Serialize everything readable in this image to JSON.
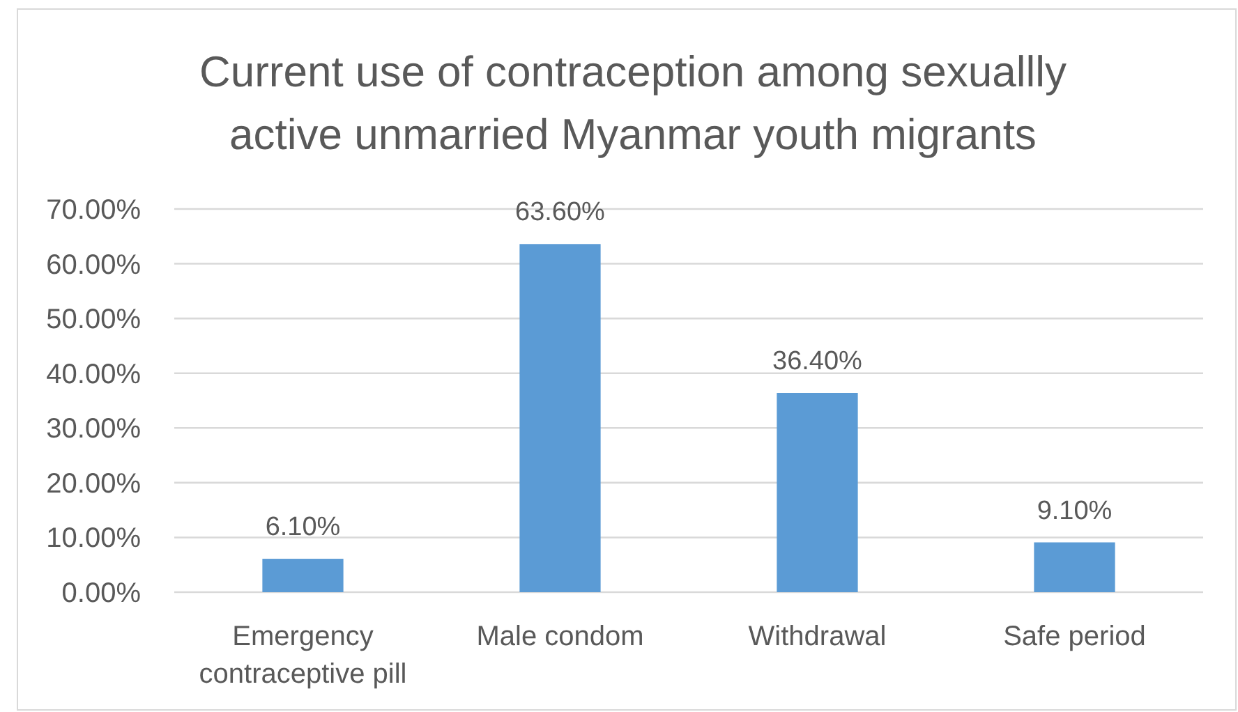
{
  "chart_data": {
    "type": "bar",
    "title": "Current use of contraception among sexuallly active unmarried Myanmar youth migrants",
    "categories": [
      "Emergency contraceptive pill",
      "Male condom",
      "Withdrawal",
      "Safe period"
    ],
    "values": [
      6.1,
      63.6,
      36.4,
      9.1
    ],
    "value_labels": [
      "6.10%",
      "63.60%",
      "36.40%",
      "9.10%"
    ],
    "color": "#5b9bd5",
    "ylim": [
      0,
      70
    ],
    "yticks": [
      {
        "value": 0,
        "label": "0.00%"
      },
      {
        "value": 10,
        "label": "10.00%"
      },
      {
        "value": 20,
        "label": "20.00%"
      },
      {
        "value": 30,
        "label": "30.00%"
      },
      {
        "value": 40,
        "label": "40.00%"
      },
      {
        "value": 50,
        "label": "50.00%"
      },
      {
        "value": 60,
        "label": "60.00%"
      },
      {
        "value": 70,
        "label": "70.00%"
      }
    ],
    "grid": "y"
  }
}
